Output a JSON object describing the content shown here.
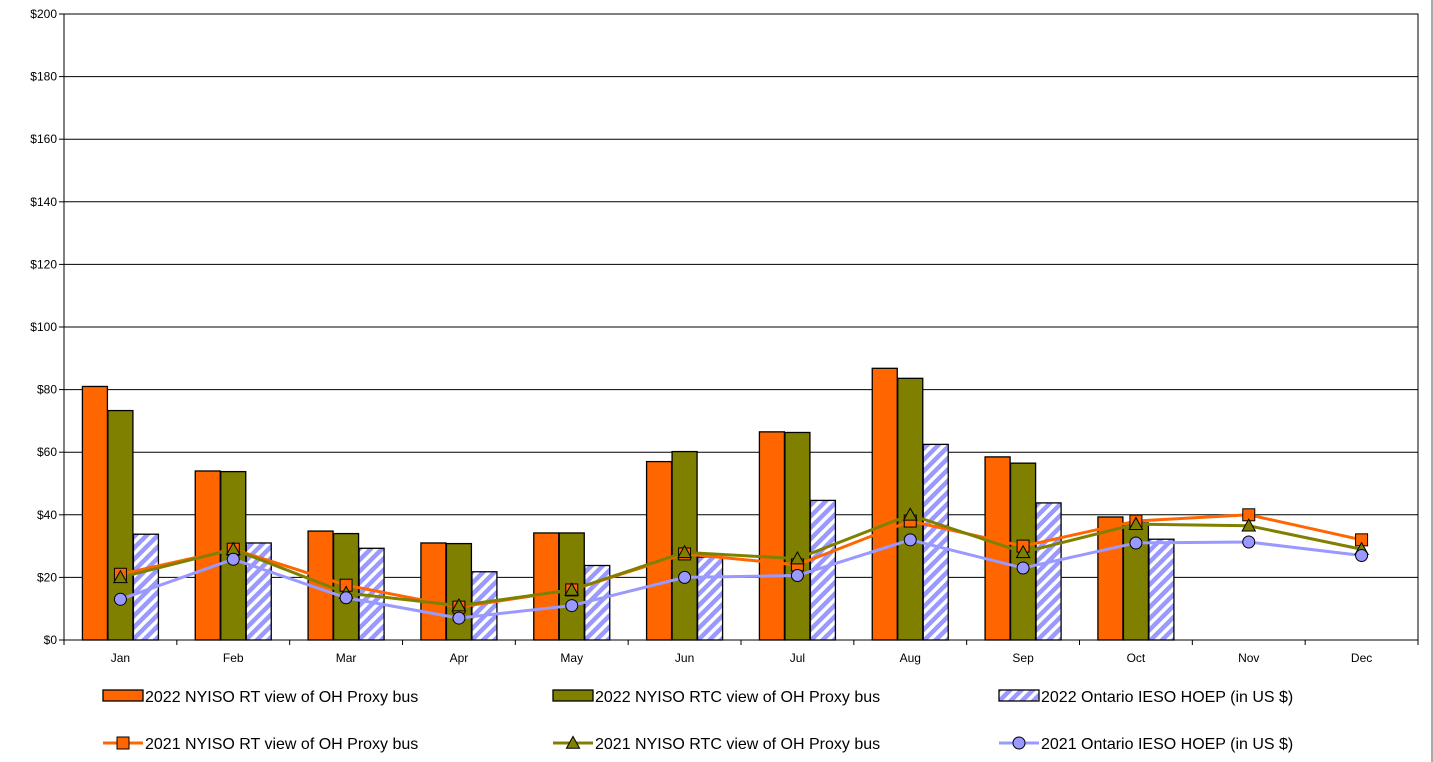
{
  "chart_data": {
    "type": "bar",
    "categories": [
      "Jan",
      "Feb",
      "Mar",
      "Apr",
      "May",
      "Jun",
      "Jul",
      "Aug",
      "Sep",
      "Oct",
      "Nov",
      "Dec"
    ],
    "ylim": [
      0,
      200
    ],
    "yticks": [
      0,
      20,
      40,
      60,
      80,
      100,
      120,
      140,
      160,
      180,
      200
    ],
    "ytick_labels": [
      "$0",
      "$20",
      "$40",
      "$60",
      "$80",
      "$100",
      "$120",
      "$140",
      "$160",
      "$180",
      "$200"
    ],
    "grid": true,
    "legend_position": "bottom",
    "bar_series": [
      {
        "name": "2022 NYISO RT view of OH Proxy bus",
        "color": "#FF6600",
        "pattern": "solid",
        "values": [
          81,
          54,
          34.8,
          31,
          34.2,
          57,
          66.5,
          86.8,
          58.5,
          39.3,
          null,
          null
        ]
      },
      {
        "name": "2022 NYISO RTC view of OH Proxy bus",
        "color": "#808000",
        "pattern": "solid",
        "values": [
          73.3,
          53.8,
          34,
          30.8,
          34.2,
          60.2,
          66.3,
          83.6,
          56.5,
          37.4,
          null,
          null
        ]
      },
      {
        "name": "2022 Ontario IESO HOEP (in US $)",
        "color": "#9999FF",
        "pattern": "hatched",
        "values": [
          33.8,
          31,
          29.3,
          21.8,
          23.8,
          26.5,
          44.6,
          62.5,
          43.8,
          32.2,
          null,
          null
        ]
      }
    ],
    "line_series": [
      {
        "name": "2021 NYISO RT view of OH Proxy bus",
        "color": "#FF6600",
        "marker": "square",
        "values": [
          21,
          29,
          17.5,
          10.5,
          16,
          27.5,
          24,
          38,
          30,
          38,
          40,
          32
        ]
      },
      {
        "name": "2021 NYISO RTC view of OH Proxy bus",
        "color": "#808000",
        "marker": "triangle",
        "values": [
          20,
          29,
          15,
          11,
          16,
          28,
          26,
          40,
          28,
          37,
          36.5,
          29
        ]
      },
      {
        "name": "2021 Ontario IESO HOEP (in US $)",
        "color": "#9999FF",
        "marker": "circle",
        "values": [
          13,
          25.8,
          13.5,
          7,
          11,
          20,
          20.6,
          32,
          23,
          31,
          31.3,
          27
        ]
      }
    ]
  }
}
